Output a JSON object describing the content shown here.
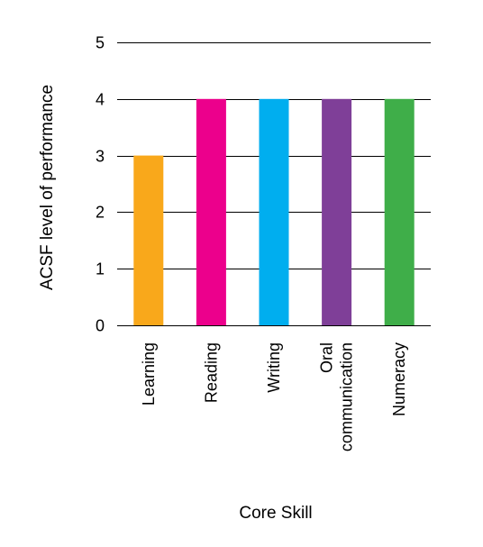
{
  "chart_data": {
    "type": "bar",
    "title": "",
    "xlabel": "Core Skill",
    "ylabel": "ACSF level of performance",
    "categories": [
      [
        "Learning"
      ],
      [
        "Reading"
      ],
      [
        "Writing"
      ],
      [
        "Oral",
        "communication"
      ],
      [
        "Numeracy"
      ]
    ],
    "values": [
      3,
      4,
      4,
      4,
      4
    ],
    "colors": [
      "#F9A81B",
      "#EC008C",
      "#00AEEF",
      "#7F3F98",
      "#3FAE49"
    ],
    "ylim": [
      0,
      5
    ],
    "yticks": [
      0,
      1,
      2,
      3,
      4,
      5
    ],
    "grid": true,
    "legend": "none"
  }
}
